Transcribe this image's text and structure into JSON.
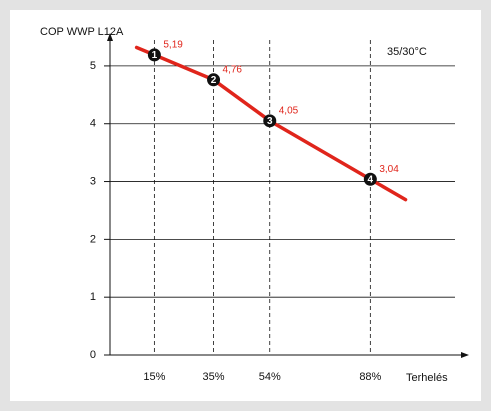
{
  "chart_data": {
    "type": "line",
    "title": "COP WWP L12A",
    "annotation": "35/30°C",
    "x_label": "Terhelés",
    "x": [
      15,
      35,
      54,
      88
    ],
    "series": [
      {
        "name": "COP",
        "color": "#e0251b",
        "values": [
          5.19,
          4.76,
          4.05,
          3.04
        ],
        "value_labels": [
          "5,19",
          "4,76",
          "4,05",
          "3,04"
        ]
      }
    ],
    "point_labels": [
      "1",
      "2",
      "3",
      "4"
    ],
    "xlim": [
      0,
      120
    ],
    "xticks": [
      {
        "value": 15,
        "label": "15%"
      },
      {
        "value": 35,
        "label": "35%"
      },
      {
        "value": 54,
        "label": "54%"
      },
      {
        "value": 88,
        "label": "88%"
      }
    ],
    "ylim": [
      0,
      5.5
    ],
    "yticks": [
      0,
      1,
      2,
      3,
      4,
      5
    ],
    "grid": true
  }
}
